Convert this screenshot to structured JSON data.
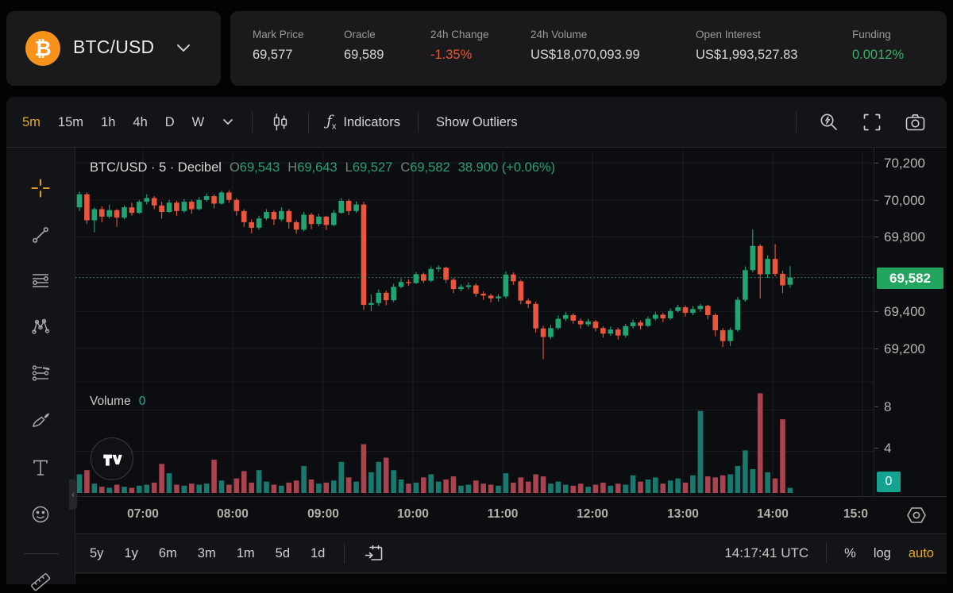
{
  "symbol": {
    "name": "BTC/USD",
    "icon_glyph": "₿"
  },
  "stats": [
    {
      "label": "Mark Price",
      "value": "69,577",
      "tone": "neutral"
    },
    {
      "label": "Oracle",
      "value": "69,589",
      "tone": "neutral"
    },
    {
      "label": "24h Change",
      "value": "-1.35%",
      "tone": "down"
    },
    {
      "label": "24h Volume",
      "value": "US$18,070,093.99",
      "tone": "neutral"
    },
    {
      "label": "Open Interest",
      "value": "US$1,993,527.83",
      "tone": "neutral"
    },
    {
      "label": "Funding",
      "value": "0.0012%",
      "tone": "up"
    }
  ],
  "toolbar": {
    "timeframes": [
      "5m",
      "15m",
      "1h",
      "4h",
      "D",
      "W"
    ],
    "active_timeframe": "5m",
    "indicators_label": "Indicators",
    "show_outliers_label": "Show Outliers"
  },
  "legend": {
    "title": "BTC/USD · 5 · Decibel",
    "ohlc": [
      {
        "k": "O",
        "v": "69,543"
      },
      {
        "k": "H",
        "v": "69,643"
      },
      {
        "k": "L",
        "v": "69,527"
      },
      {
        "k": "C",
        "v": "69,582"
      }
    ],
    "change": "38.900 (+0.06%)"
  },
  "volume_pane": {
    "label": "Volume",
    "value": "0"
  },
  "watermark": "TV",
  "bottom_bar": {
    "ranges": [
      "5y",
      "1y",
      "6m",
      "3m",
      "1m",
      "5d",
      "1d"
    ],
    "clock": "14:17:41 UTC",
    "scale_buttons": [
      "%",
      "log",
      "auto"
    ],
    "active_scale": "auto"
  },
  "chart_data": {
    "type": "candlestick_with_volume",
    "interval": "5m",
    "title": "BTC/USD · 5 · Decibel",
    "last_price": "69,582",
    "last_price_value": 69582,
    "price_axis_ticks": [
      "70,200",
      "70,000",
      "69,800",
      "69,400",
      "69,200"
    ],
    "price_axis_tick_values": [
      70200,
      70000,
      69800,
      69400,
      69200
    ],
    "gridline_prices": [
      70200,
      70000,
      69800,
      69600,
      69400,
      69200
    ],
    "volume_axis_ticks": [
      "8",
      "4"
    ],
    "volume_axis_tick_values": [
      8,
      4
    ],
    "volume_last": "0",
    "time_ticks": [
      "07:00",
      "08:00",
      "09:00",
      "10:00",
      "11:00",
      "12:00",
      "13:00",
      "14:00",
      "15:0"
    ],
    "ylim_price": [
      69100,
      70250
    ],
    "ylim_volume": [
      0,
      10
    ],
    "colors": {
      "up": "#1fa571",
      "down": "#ea553c",
      "vol_up": "#18796f",
      "vol_down": "#a8434f",
      "grid": "#1a1d20",
      "last_price_line": "#2f9e6e",
      "badge_price": "#22a55e",
      "badge_volume": "#14a391",
      "accent_gold": "#e3a822"
    },
    "candles": [
      [
        69960,
        70045,
        69940,
        70030,
        1.8
      ],
      [
        70030,
        70040,
        69870,
        69890,
        2.2
      ],
      [
        69890,
        69960,
        69825,
        69950,
        0.9
      ],
      [
        69950,
        69965,
        69880,
        69910,
        0.6
      ],
      [
        69910,
        69975,
        69900,
        69945,
        0.5
      ],
      [
        69945,
        69950,
        69855,
        69905,
        0.8
      ],
      [
        69905,
        69970,
        69895,
        69960,
        0.6
      ],
      [
        69960,
        69985,
        69915,
        69930,
        0.5
      ],
      [
        69930,
        70000,
        69925,
        69990,
        0.7
      ],
      [
        69990,
        70030,
        69975,
        70010,
        0.8
      ],
      [
        70010,
        70020,
        69950,
        69970,
        1.0
      ],
      [
        69970,
        69990,
        69900,
        69935,
        2.8
      ],
      [
        69935,
        70000,
        69930,
        69985,
        1.9
      ],
      [
        69985,
        69995,
        69915,
        69940,
        0.8
      ],
      [
        69940,
        70005,
        69930,
        69990,
        0.7
      ],
      [
        69990,
        70000,
        69925,
        69950,
        0.9
      ],
      [
        69950,
        70015,
        69945,
        70000,
        0.8
      ],
      [
        70000,
        70035,
        69990,
        70020,
        0.9
      ],
      [
        70020,
        70030,
        69955,
        69980,
        3.2
      ],
      [
        69980,
        70050,
        69975,
        70040,
        1.2
      ],
      [
        70040,
        70052,
        69985,
        70000,
        0.8
      ],
      [
        70000,
        70010,
        69915,
        69940,
        1.4
      ],
      [
        69940,
        69950,
        69855,
        69880,
        2.1
      ],
      [
        69880,
        69895,
        69820,
        69850,
        1.0
      ],
      [
        69850,
        69915,
        69840,
        69900,
        2.2
      ],
      [
        69900,
        69950,
        69890,
        69935,
        1.1
      ],
      [
        69935,
        69945,
        69865,
        69895,
        0.8
      ],
      [
        69895,
        69960,
        69885,
        69940,
        0.7
      ],
      [
        69940,
        69950,
        69845,
        69880,
        1.0
      ],
      [
        69880,
        69890,
        69818,
        69840,
        1.2
      ],
      [
        69840,
        69935,
        69832,
        69920,
        2.6
      ],
      [
        69920,
        69930,
        69842,
        69870,
        1.3
      ],
      [
        69870,
        69925,
        69858,
        69910,
        0.9
      ],
      [
        69910,
        69915,
        69838,
        69865,
        1.0
      ],
      [
        69865,
        69945,
        69858,
        69930,
        1.2
      ],
      [
        69930,
        70010,
        69925,
        69995,
        3.0
      ],
      [
        69995,
        70005,
        69918,
        69940,
        1.5
      ],
      [
        69940,
        69992,
        69930,
        69975,
        1.1
      ],
      [
        69975,
        69990,
        69408,
        69435,
        4.7
      ],
      [
        69435,
        69492,
        69402,
        69445,
        2.0
      ],
      [
        69445,
        69518,
        69430,
        69500,
        3.0
      ],
      [
        69500,
        69512,
        69432,
        69460,
        3.4
      ],
      [
        69460,
        69548,
        69450,
        69532,
        2.2
      ],
      [
        69532,
        69578,
        69525,
        69558,
        1.3
      ],
      [
        69558,
        69572,
        69538,
        69552,
        0.9
      ],
      [
        69552,
        69612,
        69548,
        69600,
        1.0
      ],
      [
        69600,
        69608,
        69552,
        69565,
        1.5
      ],
      [
        69565,
        69642,
        69558,
        69628,
        1.8
      ],
      [
        69628,
        69648,
        69612,
        69635,
        1.1
      ],
      [
        69635,
        69640,
        69552,
        69570,
        1.3
      ],
      [
        69570,
        69580,
        69498,
        69520,
        1.6
      ],
      [
        69520,
        69545,
        69508,
        69532,
        0.7
      ],
      [
        69532,
        69556,
        69518,
        69540,
        0.8
      ],
      [
        69540,
        69550,
        69478,
        69495,
        1.2
      ],
      [
        69495,
        69508,
        69462,
        69485,
        0.9
      ],
      [
        69485,
        69495,
        69448,
        69470,
        0.8
      ],
      [
        69470,
        69492,
        69452,
        69480,
        0.7
      ],
      [
        69480,
        69615,
        69468,
        69598,
        1.9
      ],
      [
        69598,
        69610,
        69542,
        69562,
        1.0
      ],
      [
        69562,
        69570,
        69438,
        69458,
        1.5
      ],
      [
        69458,
        69470,
        69418,
        69440,
        1.1
      ],
      [
        69440,
        69452,
        69285,
        69308,
        1.8
      ],
      [
        69308,
        69322,
        69142,
        69262,
        1.6
      ],
      [
        69262,
        69328,
        69250,
        69310,
        0.9
      ],
      [
        69310,
        69378,
        69300,
        69360,
        1.1
      ],
      [
        69360,
        69396,
        69348,
        69380,
        0.8
      ],
      [
        69380,
        69390,
        69332,
        69350,
        0.7
      ],
      [
        69350,
        69362,
        69308,
        69330,
        0.9
      ],
      [
        69330,
        69360,
        69318,
        69345,
        0.6
      ],
      [
        69345,
        69355,
        69292,
        69310,
        0.8
      ],
      [
        69310,
        69320,
        69258,
        69280,
        1.0
      ],
      [
        69280,
        69318,
        69268,
        69302,
        0.7
      ],
      [
        69302,
        69312,
        69248,
        69270,
        0.9
      ],
      [
        69270,
        69332,
        69258,
        69320,
        0.8
      ],
      [
        69320,
        69356,
        69308,
        69340,
        1.7
      ],
      [
        69340,
        69352,
        69302,
        69322,
        1.1
      ],
      [
        69322,
        69372,
        69315,
        69360,
        1.3
      ],
      [
        69360,
        69396,
        69350,
        69382,
        1.5
      ],
      [
        69382,
        69392,
        69342,
        69362,
        0.9
      ],
      [
        69362,
        69416,
        69355,
        69402,
        1.2
      ],
      [
        69402,
        69436,
        69394,
        69422,
        1.4
      ],
      [
        69422,
        69432,
        69372,
        69392,
        1.0
      ],
      [
        69392,
        69428,
        69380,
        69412,
        1.7
      ],
      [
        69412,
        69440,
        69398,
        69430,
        7.9
      ],
      [
        69430,
        69436,
        69356,
        69380,
        1.6
      ],
      [
        69380,
        69390,
        69266,
        69298,
        1.5
      ],
      [
        69298,
        69310,
        69208,
        69240,
        1.7
      ],
      [
        69240,
        69312,
        69214,
        69300,
        1.8
      ],
      [
        69300,
        69478,
        69290,
        69462,
        2.6
      ],
      [
        69462,
        69642,
        69452,
        69622,
        4.1
      ],
      [
        69622,
        69840,
        69610,
        69752,
        2.3
      ],
      [
        69752,
        69762,
        69468,
        69600,
        9.6
      ],
      [
        69600,
        69702,
        69580,
        69682,
        2.0
      ],
      [
        69682,
        69762,
        69588,
        69602,
        1.4
      ],
      [
        69602,
        69618,
        69498,
        69540,
        7.1
      ],
      [
        69543,
        69643,
        69527,
        69582,
        0.5
      ]
    ]
  }
}
